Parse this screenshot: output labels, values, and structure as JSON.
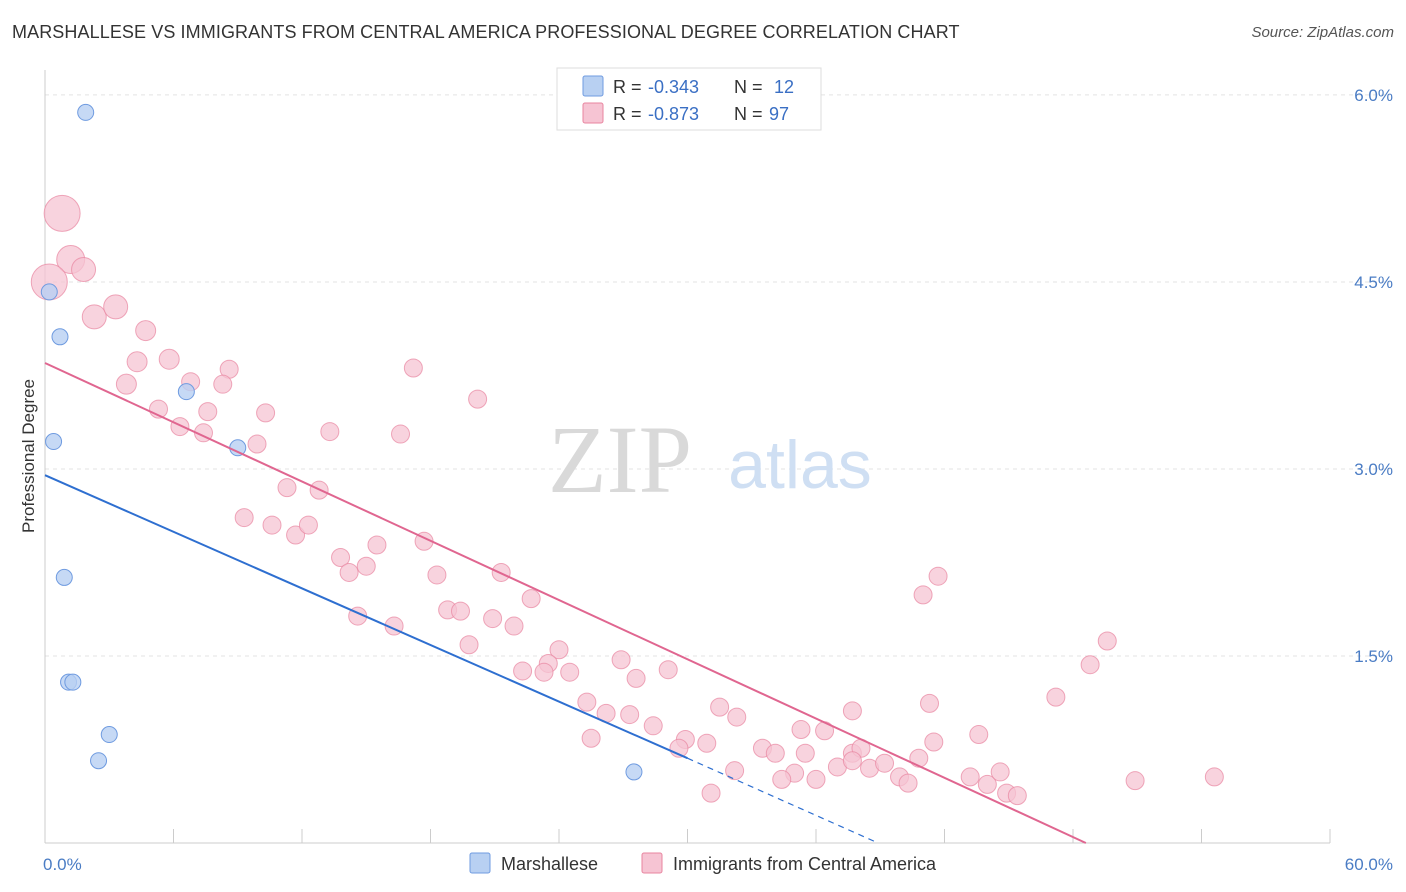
{
  "title": "MARSHALLESE VS IMMIGRANTS FROM CENTRAL AMERICA PROFESSIONAL DEGREE CORRELATION CHART",
  "source": "Source: ZipAtlas.com",
  "watermark": {
    "zip": "ZIP",
    "atlas": "atlas"
  },
  "colors": {
    "blue_fill": "#b8d0f2",
    "blue_stroke": "#6f9be0",
    "blue_line": "#2e6fd0",
    "pink_fill": "#f6c4d3",
    "pink_stroke": "#e8859f",
    "pink_line": "#e06690",
    "grid": "#e3e3e3",
    "tick_text": "#4a7cc4"
  },
  "legend": {
    "rows": [
      {
        "r_label": "R =",
        "r_value": "-0.343",
        "n_label": "N =",
        "n_value": "12"
      },
      {
        "r_label": "R =",
        "r_value": "-0.873",
        "n_label": "N =",
        "n_value": "97"
      }
    ]
  },
  "chart_data": {
    "type": "scatter",
    "title": "MARSHALLESE VS IMMIGRANTS FROM CENTRAL AMERICA PROFESSIONAL DEGREE CORRELATION CHART",
    "xlabel": "",
    "ylabel": "Professional Degree",
    "xlim": [
      0,
      60
    ],
    "ylim": [
      0,
      6.2
    ],
    "x_tick_labels": [
      "0.0%",
      "60.0%"
    ],
    "y_ticks": [
      1.5,
      3.0,
      4.5,
      6.0
    ],
    "y_tick_labels": [
      "1.5%",
      "3.0%",
      "4.5%",
      "6.0%"
    ],
    "grid": true,
    "series": [
      {
        "name": "Marshallese",
        "points": [
          [
            1.9,
            5.86
          ],
          [
            0.2,
            4.42
          ],
          [
            0.7,
            4.06
          ],
          [
            6.6,
            3.62
          ],
          [
            0.4,
            3.22
          ],
          [
            9.0,
            3.17
          ],
          [
            0.9,
            2.13
          ],
          [
            1.1,
            1.29
          ],
          [
            1.3,
            1.29
          ],
          [
            3.0,
            0.87
          ],
          [
            2.5,
            0.66
          ],
          [
            27.5,
            0.57
          ]
        ],
        "trend": {
          "x0": 0,
          "y0": 2.95,
          "x1": 30,
          "y1": 0.68,
          "dash_to_x": 38.9,
          "dash_to_y": 0.0
        }
      },
      {
        "name": "Immigrants from Central America",
        "points": [
          [
            0.8,
            5.05,
            18
          ],
          [
            1.2,
            4.68,
            14
          ],
          [
            1.8,
            4.6,
            12
          ],
          [
            0.2,
            4.5,
            18
          ],
          [
            2.3,
            4.22,
            12
          ],
          [
            3.3,
            4.3,
            12
          ],
          [
            4.7,
            4.11,
            10
          ],
          [
            4.3,
            3.86,
            10
          ],
          [
            5.8,
            3.88,
            10
          ],
          [
            3.8,
            3.68,
            10
          ],
          [
            6.8,
            3.7,
            9
          ],
          [
            8.6,
            3.8,
            9
          ],
          [
            8.3,
            3.68,
            9
          ],
          [
            17.2,
            3.81,
            9
          ],
          [
            20.2,
            3.56,
            9
          ],
          [
            5.3,
            3.48,
            9
          ],
          [
            7.6,
            3.46,
            9
          ],
          [
            10.3,
            3.45,
            9
          ],
          [
            6.3,
            3.34,
            9
          ],
          [
            7.4,
            3.29,
            9
          ],
          [
            13.3,
            3.3,
            9
          ],
          [
            16.6,
            3.28,
            9
          ],
          [
            9.9,
            3.2,
            9
          ],
          [
            11.3,
            2.85,
            9
          ],
          [
            12.8,
            2.83,
            9
          ],
          [
            9.3,
            2.61,
            9
          ],
          [
            10.6,
            2.55,
            9
          ],
          [
            11.7,
            2.47,
            9
          ],
          [
            12.3,
            2.55,
            9
          ],
          [
            17.7,
            2.42,
            9
          ],
          [
            15.5,
            2.39,
            9
          ],
          [
            13.8,
            2.29,
            9
          ],
          [
            14.2,
            2.17,
            9
          ],
          [
            15.0,
            2.22,
            9
          ],
          [
            18.3,
            2.15,
            9
          ],
          [
            21.3,
            2.17,
            9
          ],
          [
            22.7,
            1.96,
            9
          ],
          [
            18.8,
            1.87,
            9
          ],
          [
            19.4,
            1.86,
            9
          ],
          [
            14.6,
            1.82,
            9
          ],
          [
            16.3,
            1.74,
            9
          ],
          [
            20.9,
            1.8,
            9
          ],
          [
            21.9,
            1.74,
            9
          ],
          [
            19.8,
            1.59,
            9
          ],
          [
            24.0,
            1.55,
            9
          ],
          [
            26.9,
            1.47,
            9
          ],
          [
            22.3,
            1.38,
            9
          ],
          [
            23.5,
            1.44,
            9
          ],
          [
            23.3,
            1.37,
            9
          ],
          [
            24.5,
            1.37,
            9
          ],
          [
            27.6,
            1.32,
            9
          ],
          [
            29.1,
            1.39,
            9
          ],
          [
            25.3,
            1.13,
            9
          ],
          [
            26.2,
            1.04,
            9
          ],
          [
            27.3,
            1.03,
            9
          ],
          [
            28.4,
            0.94,
            9
          ],
          [
            31.5,
            1.09,
            9
          ],
          [
            32.3,
            1.01,
            9
          ],
          [
            25.5,
            0.84,
            9
          ],
          [
            29.9,
            0.83,
            9
          ],
          [
            30.9,
            0.8,
            9
          ],
          [
            29.6,
            0.76,
            9
          ],
          [
            33.5,
            0.76,
            9
          ],
          [
            34.1,
            0.72,
            9
          ],
          [
            35.5,
            0.72,
            9
          ],
          [
            35.0,
            0.56,
            9
          ],
          [
            32.2,
            0.58,
            9
          ],
          [
            34.4,
            0.51,
            9
          ],
          [
            36.0,
            0.51,
            9
          ],
          [
            37.0,
            0.61,
            9
          ],
          [
            37.7,
            0.72,
            9
          ],
          [
            38.1,
            0.76,
            9
          ],
          [
            38.5,
            0.6,
            9
          ],
          [
            39.2,
            0.64,
            9
          ],
          [
            37.7,
            0.66,
            9
          ],
          [
            39.9,
            0.53,
            9
          ],
          [
            40.3,
            0.48,
            9
          ],
          [
            40.8,
            0.68,
            9
          ],
          [
            41.5,
            0.81,
            9
          ],
          [
            43.6,
            0.87,
            9
          ],
          [
            35.3,
            0.91,
            9
          ],
          [
            36.4,
            0.9,
            9
          ],
          [
            37.7,
            1.06,
            9
          ],
          [
            31.1,
            0.4,
            9
          ],
          [
            41.0,
            1.99,
            9
          ],
          [
            41.7,
            2.14,
            9
          ],
          [
            41.3,
            1.12,
            9
          ],
          [
            43.2,
            0.53,
            9
          ],
          [
            44.0,
            0.47,
            9
          ],
          [
            44.6,
            0.57,
            9
          ],
          [
            44.9,
            0.4,
            9
          ],
          [
            45.4,
            0.38,
            9
          ],
          [
            47.2,
            1.17,
            9
          ],
          [
            48.8,
            1.43,
            9
          ],
          [
            49.6,
            1.62,
            9
          ],
          [
            50.9,
            0.5,
            9
          ],
          [
            54.6,
            0.53,
            9
          ]
        ],
        "trend": {
          "x0": 0,
          "y0": 3.85,
          "x1": 48.6,
          "y1": 0.0
        }
      }
    ],
    "legend_bottom": [
      "Marshallese",
      "Immigrants from Central America"
    ]
  }
}
